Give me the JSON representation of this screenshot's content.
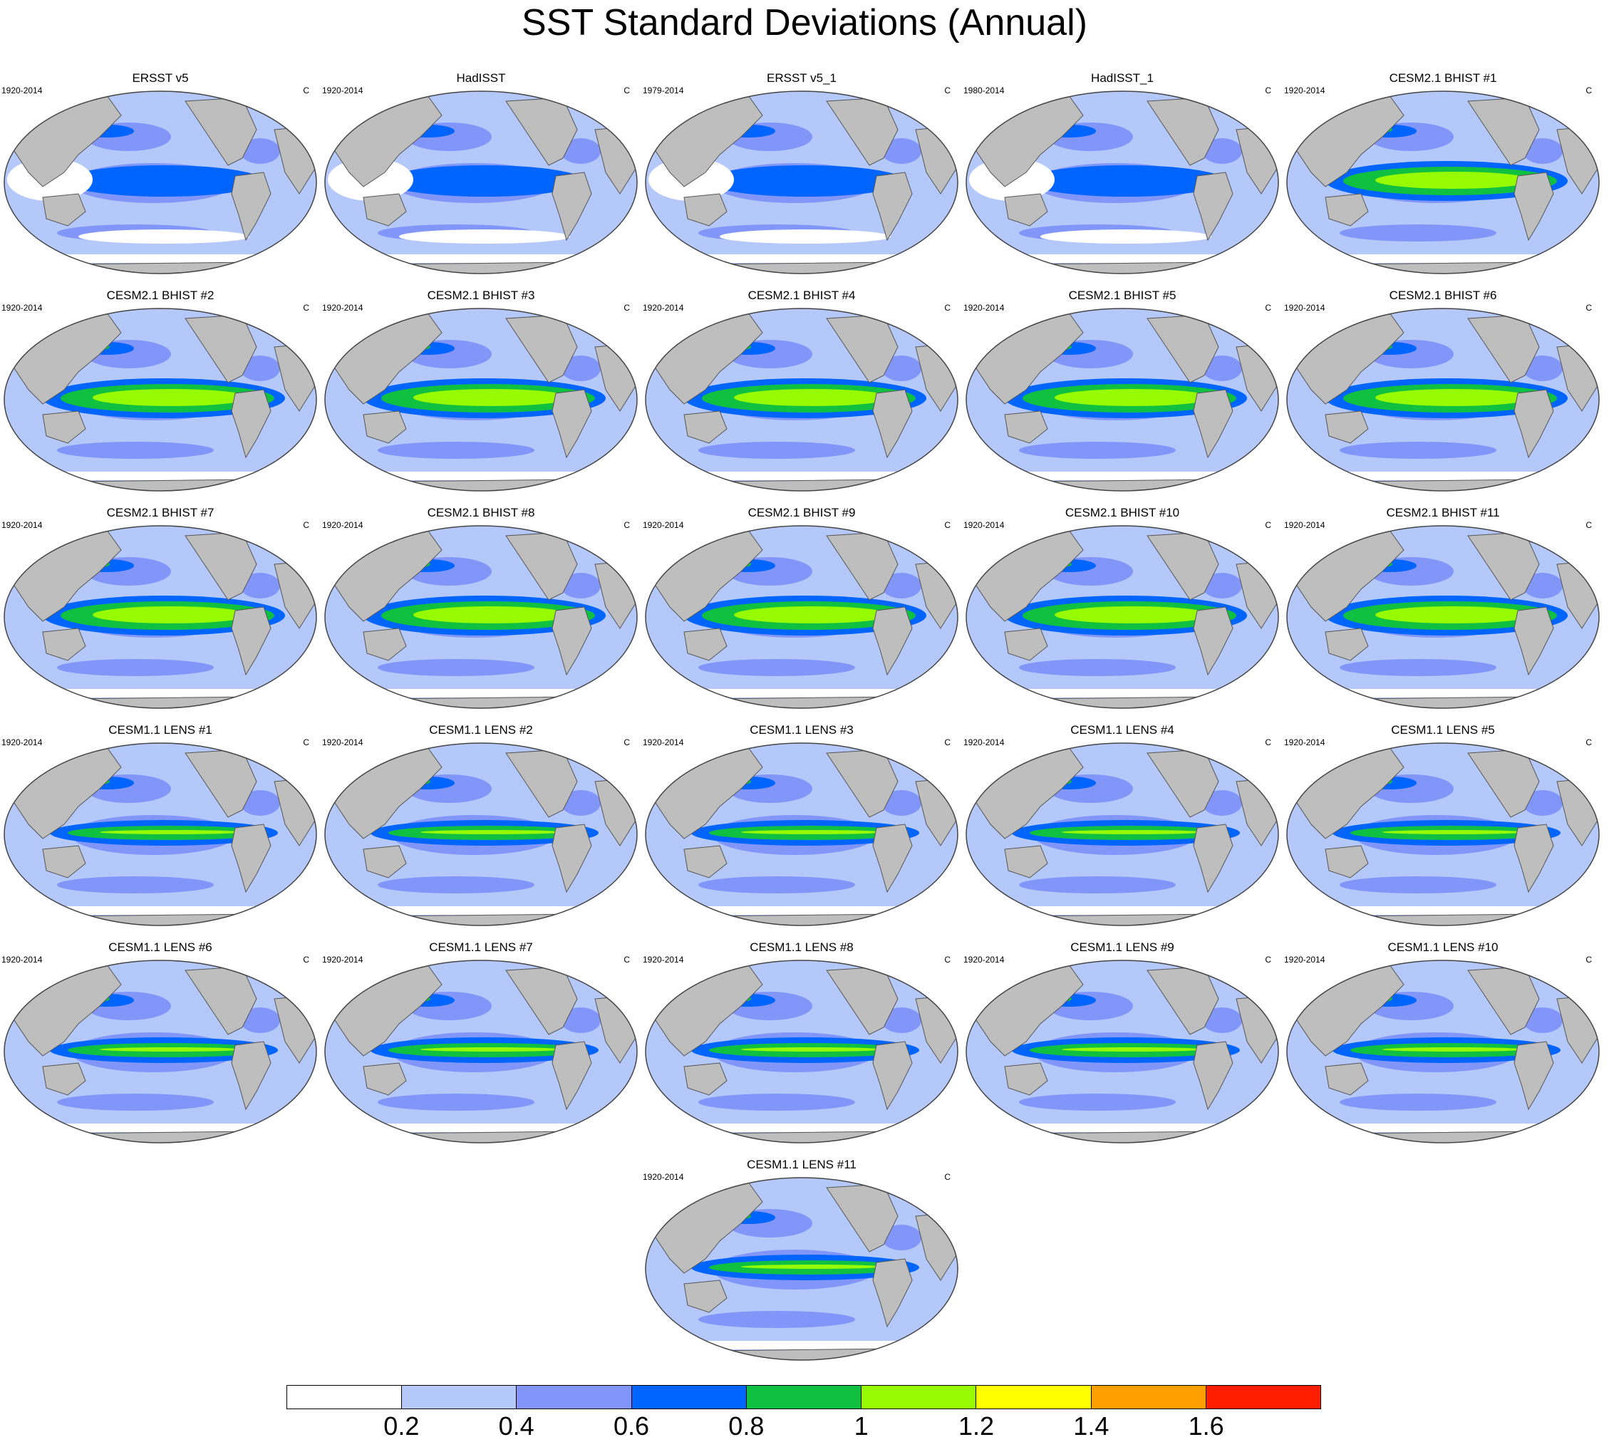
{
  "title": "SST Standard Deviations (Annual)",
  "unit_label": "C",
  "panels": [
    {
      "title": "ERSST v5",
      "years": "1920-2014"
    },
    {
      "title": "HadISST",
      "years": "1920-2014"
    },
    {
      "title": "ERSST v5_1",
      "years": "1979-2014"
    },
    {
      "title": "HadISST_1",
      "years": "1980-2014"
    },
    {
      "title": "CESM2.1 BHIST #1",
      "years": "1920-2014"
    },
    {
      "title": "CESM2.1 BHIST #2",
      "years": "1920-2014"
    },
    {
      "title": "CESM2.1 BHIST #3",
      "years": "1920-2014"
    },
    {
      "title": "CESM2.1 BHIST #4",
      "years": "1920-2014"
    },
    {
      "title": "CESM2.1 BHIST #5",
      "years": "1920-2014"
    },
    {
      "title": "CESM2.1 BHIST #6",
      "years": "1920-2014"
    },
    {
      "title": "CESM2.1 BHIST #7",
      "years": "1920-2014"
    },
    {
      "title": "CESM2.1 BHIST #8",
      "years": "1920-2014"
    },
    {
      "title": "CESM2.1 BHIST #9",
      "years": "1920-2014"
    },
    {
      "title": "CESM2.1 BHIST #10",
      "years": "1920-2014"
    },
    {
      "title": "CESM2.1 BHIST #11",
      "years": "1920-2014"
    },
    {
      "title": "CESM1.1 LENS #1",
      "years": "1920-2014"
    },
    {
      "title": "CESM1.1 LENS #2",
      "years": "1920-2014"
    },
    {
      "title": "CESM1.1 LENS #3",
      "years": "1920-2014"
    },
    {
      "title": "CESM1.1 LENS #4",
      "years": "1920-2014"
    },
    {
      "title": "CESM1.1 LENS #5",
      "years": "1920-2014"
    },
    {
      "title": "CESM1.1 LENS #6",
      "years": "1920-2014"
    },
    {
      "title": "CESM1.1 LENS #7",
      "years": "1920-2014"
    },
    {
      "title": "CESM1.1 LENS #8",
      "years": "1920-2014"
    },
    {
      "title": "CESM1.1 LENS #9",
      "years": "1920-2014"
    },
    {
      "title": "CESM1.1 LENS #10",
      "years": "1920-2014"
    },
    {
      "title": "CESM1.1 LENS #11",
      "years": "1920-2014"
    }
  ],
  "colorbar": {
    "colors": [
      "#ffffff",
      "#b4c8fa",
      "#8296fa",
      "#0064ff",
      "#10c040",
      "#96fa00",
      "#ffff00",
      "#ffa000",
      "#ff1e00"
    ],
    "labels": [
      "0.2",
      "0.4",
      "0.6",
      "0.8",
      "1",
      "1.2",
      "1.4",
      "1.6"
    ]
  },
  "map_colors": {
    "land": "#bebebe",
    "ocean_base": "#b4c8fa",
    "ocean_mid": "#8296fa",
    "ocean_high": "#0064ff",
    "enso_core": "#10c040",
    "enso_peak": "#96fa00",
    "low_variability": "#ffffff"
  }
}
